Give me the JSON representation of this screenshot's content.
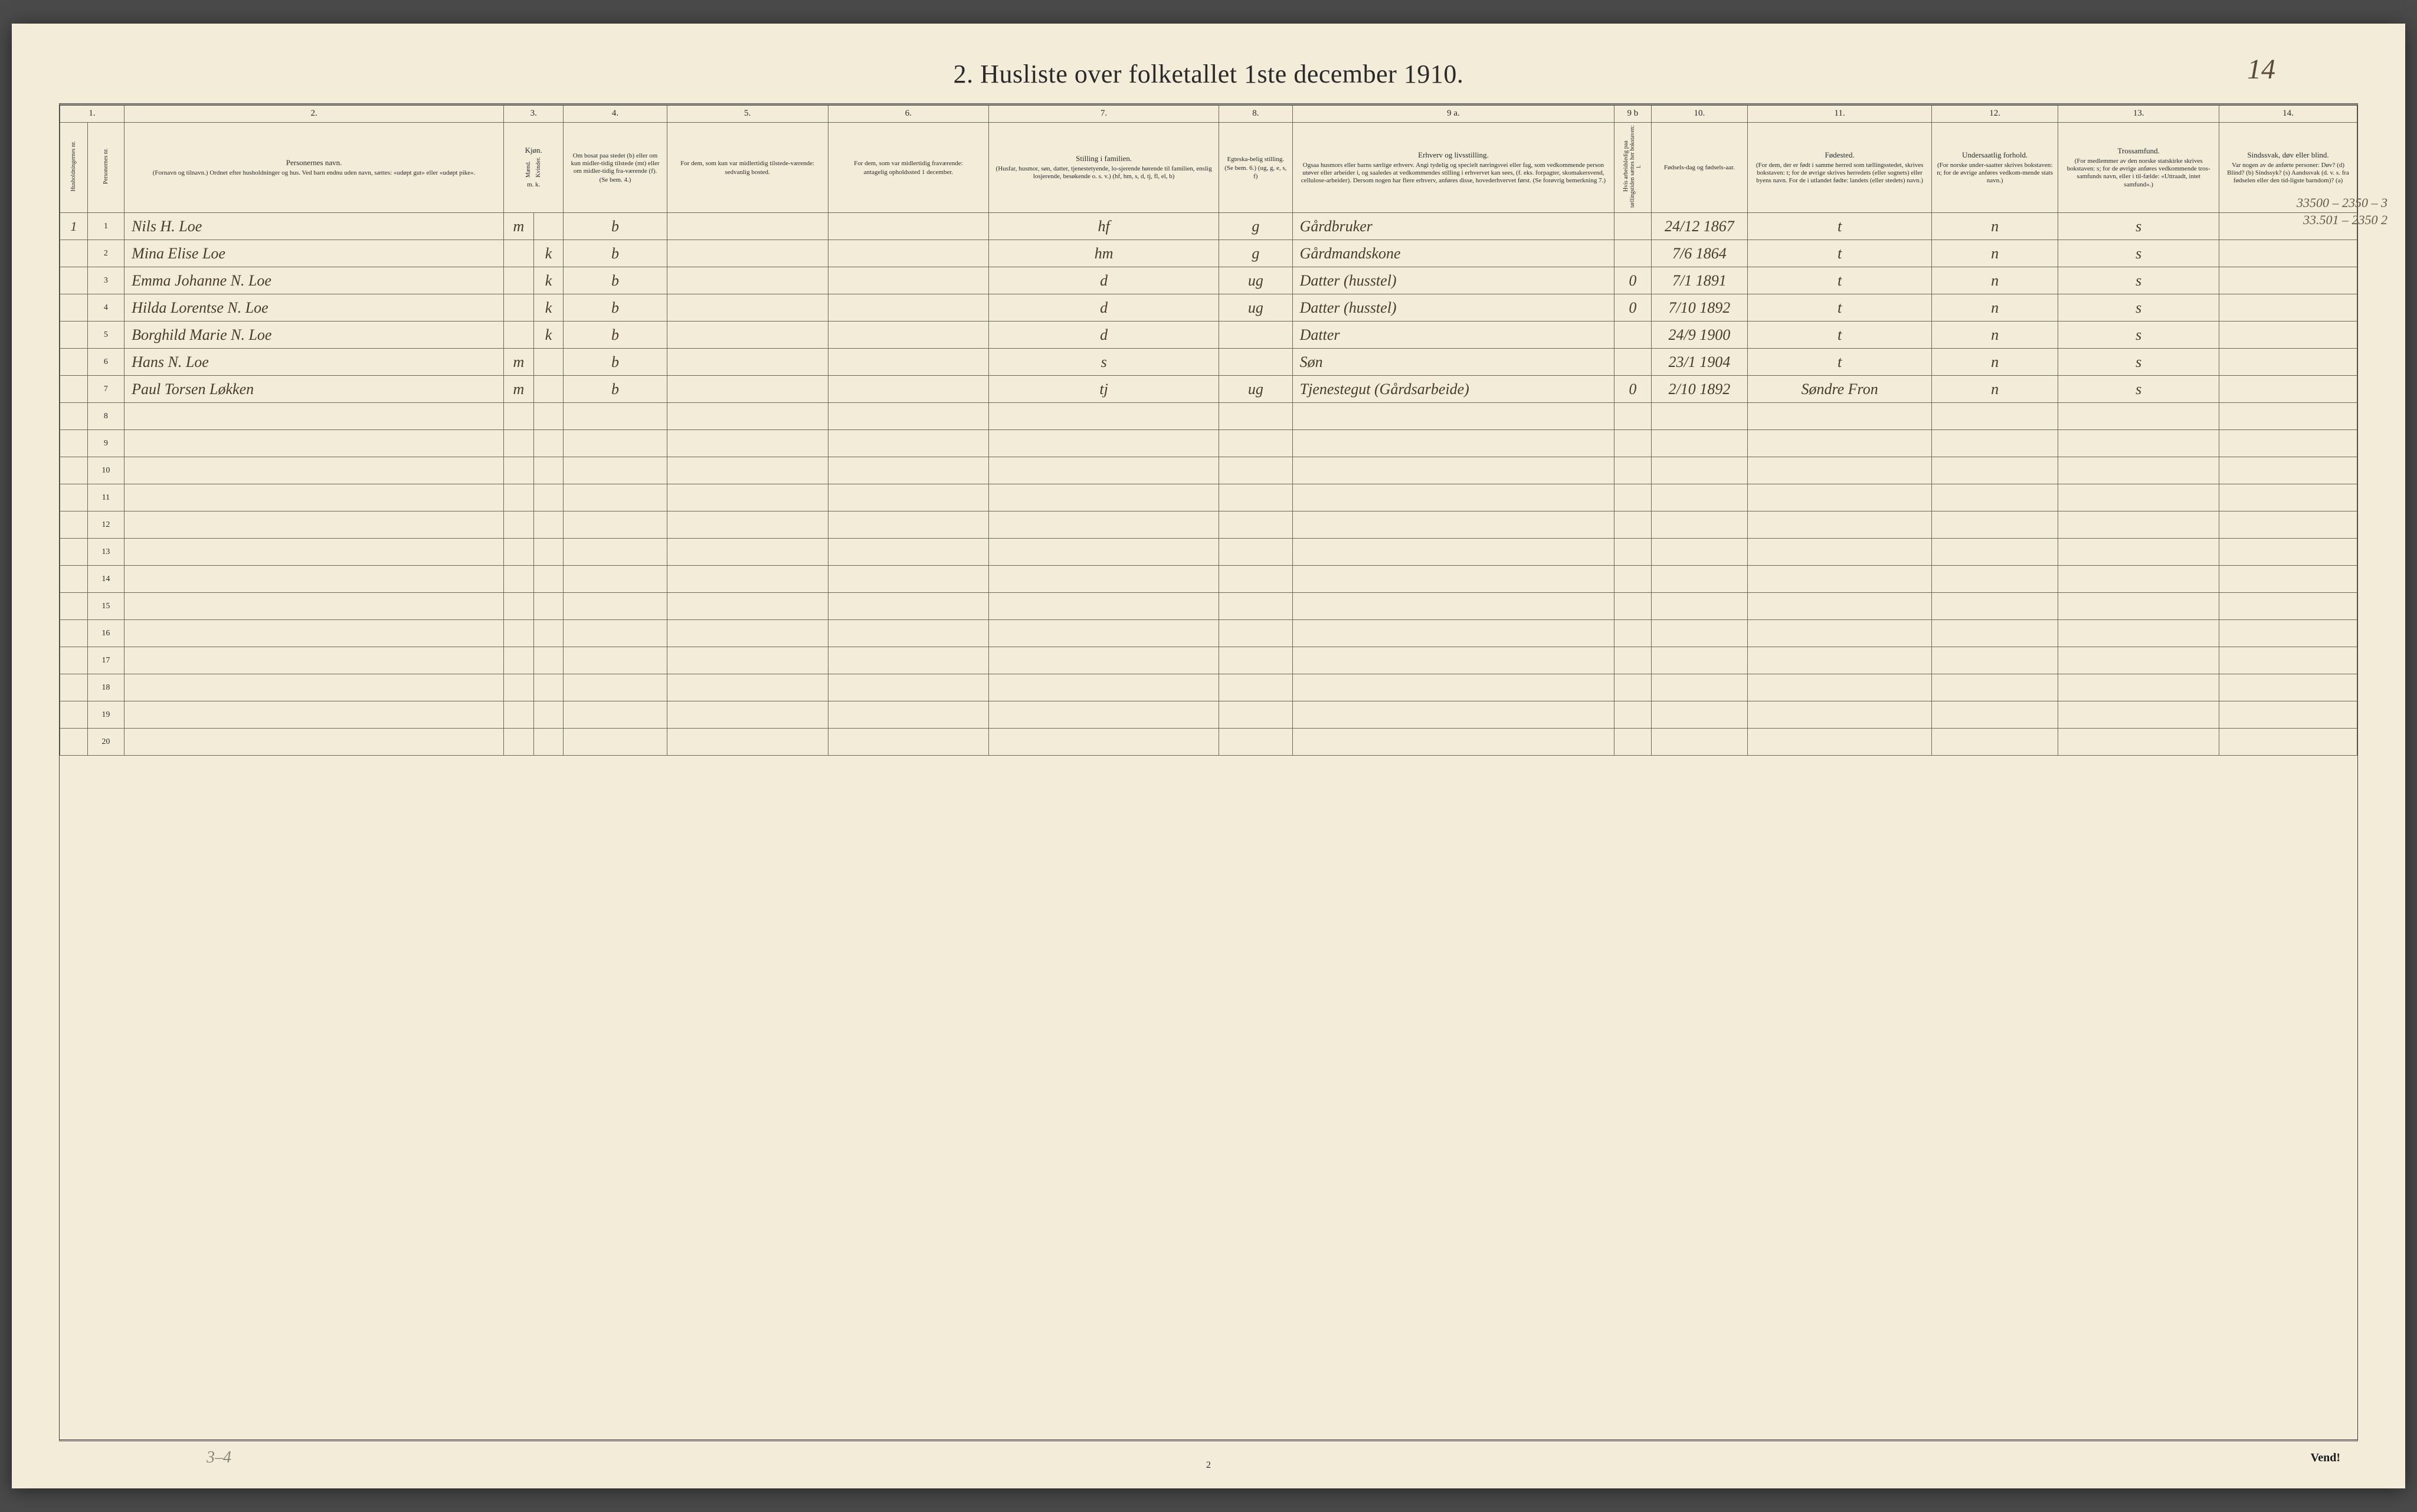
{
  "title": "2.   Husliste over folketallet 1ste december 1910.",
  "handwritten_page_number": "14",
  "footer_page_number": "2",
  "footer_turn": "Vend!",
  "footer_scribble": "3–4",
  "margin_notes": [
    "33500 – 2350 – 3",
    "33.501 – 2350 2"
  ],
  "colors": {
    "paper": "#f2ecd9",
    "ink_print": "#2a2a2a",
    "ink_hand": "#4a3a2a",
    "rule": "#6a6a5a",
    "page_bg": "#4a4a4a"
  },
  "columns_num": [
    "1.",
    "2.",
    "3.",
    "4.",
    "5.",
    "6.",
    "7.",
    "8.",
    "9 a.",
    "9 b",
    "10.",
    "11.",
    "12.",
    "13.",
    "14."
  ],
  "headers": {
    "c1a": "Husholdningernes nr.",
    "c1b": "Personernes nr.",
    "c2": "Personernes navn.",
    "c2_sub": "(Fornavn og tilnavn.)\nOrdnet efter husholdninger og hus.\nVed barn endnu uden navn, sættes: «udøpt gut» eller «udøpt pike».",
    "c3": "Kjøn.",
    "c3m": "Mænd.",
    "c3k": "Kvinder.",
    "c3mk": "m.   k.",
    "c4": "Om bosat paa stedet (b) eller om kun midler-tidig tilstede (mt) eller om midler-tidig fra-værende (f).",
    "c4_sub": "(Se bem. 4.)",
    "c5": "For dem, som kun var midlertidig tilstede-værende:",
    "c5_sub": "sedvanlig bosted.",
    "c6": "For dem, som var midlertidig fraværende:",
    "c6_sub": "antagelig opholdssted 1 december.",
    "c7": "Stilling i familien.",
    "c7_sub": "(Husfar, husmor, søn, datter, tjenestetyende, lo-sjerende hørende til familien, enslig losjerende, besøkende o. s. v.)\n(hf, hm, s, d, tj, fl, el, b)",
    "c8": "Egteska-belig stilling.",
    "c8_sub": "(Se bem. 6.)\n(ug, g, e, s, f)",
    "c9a": "Erhverv og livsstilling.",
    "c9a_sub": "Ogsaa husmors eller barns særlige erhverv. Angi tydelig og specielt næringsvei eller fag, som vedkommende person utøver eller arbeider i, og saaledes at vedkommendes stilling i erhvervet kan sees, (f. eks. forpagter, skomakersvend, cellulose-arbeider). Dersom nogen har flere erhverv, anføres disse, hovederhvervet først.\n(Se forøvrig bemerkning 7.)",
    "c9b": "Hvis arbeidsledig paa tællingstiden sættes her bokstaven: l.",
    "c10": "Fødsels-dag og fødsels-aar.",
    "c11": "Fødested.",
    "c11_sub": "(For dem, der er født i samme herred som tællingsstedet, skrives bokstaven: t; for de øvrige skrives herredets (eller sognets) eller byens navn. For de i utlandet fødte: landets (eller stedets) navn.)",
    "c12": "Undersaatlig forhold.",
    "c12_sub": "(For norske under-saatter skrives bokstaven: n; for de øvrige anføres vedkom-mende stats navn.)",
    "c13": "Trossamfund.",
    "c13_sub": "(For medlemmer av den norske statskirke skrives bokstaven: s; for de øvrige anføres vedkommende tros-samfunds navn, eller i til-fælde: «Uttraadt, intet samfund».)",
    "c14": "Sindssvak, døv eller blind.",
    "c14_sub": "Var nogen av de anførte personer:\nDøv?       (d)\nBlind?      (b)\nSindssyk?  (s)\nAandssvak (d. v. s. fra fødselen eller den tid-ligste barndom)?  (a)"
  },
  "rows": [
    {
      "hh": "1",
      "pn": "1",
      "name": "Nils H. Loe",
      "sex_m": "m",
      "sex_k": "",
      "res": "b",
      "c5": "",
      "c6": "",
      "fam": "hf",
      "mar": "g",
      "occ": "Gårdbruker",
      "c9b": "",
      "dob": "24/12 1867",
      "birthplace": "t",
      "nat": "n",
      "rel": "s",
      "c14": ""
    },
    {
      "hh": "",
      "pn": "2",
      "name": "Mina Elise Loe",
      "sex_m": "",
      "sex_k": "k",
      "res": "b",
      "c5": "",
      "c6": "",
      "fam": "hm",
      "mar": "g",
      "occ": "Gårdmandskone",
      "c9b": "",
      "dob": "7/6 1864",
      "birthplace": "t",
      "nat": "n",
      "rel": "s",
      "c14": ""
    },
    {
      "hh": "",
      "pn": "3",
      "name": "Emma Johanne N. Loe",
      "sex_m": "",
      "sex_k": "k",
      "res": "b",
      "c5": "",
      "c6": "",
      "fam": "d",
      "mar": "ug",
      "occ": "Datter (husstel)",
      "c9b": "0",
      "dob": "7/1 1891",
      "birthplace": "t",
      "nat": "n",
      "rel": "s",
      "c14": ""
    },
    {
      "hh": "",
      "pn": "4",
      "name": "Hilda Lorentse N. Loe",
      "sex_m": "",
      "sex_k": "k",
      "res": "b",
      "c5": "",
      "c6": "",
      "fam": "d",
      "mar": "ug",
      "occ": "Datter (husstel)",
      "c9b": "0",
      "dob": "7/10 1892",
      "birthplace": "t",
      "nat": "n",
      "rel": "s",
      "c14": ""
    },
    {
      "hh": "",
      "pn": "5",
      "name": "Borghild Marie N. Loe",
      "sex_m": "",
      "sex_k": "k",
      "res": "b",
      "c5": "",
      "c6": "",
      "fam": "d",
      "mar": "",
      "occ": "Datter",
      "c9b": "",
      "dob": "24/9 1900",
      "birthplace": "t",
      "nat": "n",
      "rel": "s",
      "c14": ""
    },
    {
      "hh": "",
      "pn": "6",
      "name": "Hans N. Loe",
      "sex_m": "m",
      "sex_k": "",
      "res": "b",
      "c5": "",
      "c6": "",
      "fam": "s",
      "mar": "",
      "occ": "Søn",
      "c9b": "",
      "dob": "23/1 1904",
      "birthplace": "t",
      "nat": "n",
      "rel": "s",
      "c14": ""
    },
    {
      "hh": "",
      "pn": "7",
      "name": "Paul Torsen Løkken",
      "sex_m": "m",
      "sex_k": "",
      "res": "b",
      "c5": "",
      "c6": "",
      "fam": "tj",
      "mar": "ug",
      "occ": "Tjenestegut (Gårdsarbeide)",
      "c9b": "0",
      "dob": "2/10 1892",
      "birthplace": "Søndre Fron",
      "nat": "n",
      "rel": "s",
      "c14": ""
    }
  ],
  "empty_rows": [
    "8",
    "9",
    "10",
    "11",
    "12",
    "13",
    "14",
    "15",
    "16",
    "17",
    "18",
    "19",
    "20"
  ]
}
